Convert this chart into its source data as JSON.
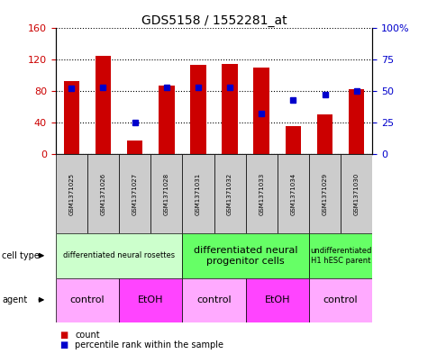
{
  "title": "GDS5158 / 1552281_at",
  "samples": [
    "GSM1371025",
    "GSM1371026",
    "GSM1371027",
    "GSM1371028",
    "GSM1371031",
    "GSM1371032",
    "GSM1371033",
    "GSM1371034",
    "GSM1371029",
    "GSM1371030"
  ],
  "counts": [
    93,
    125,
    17,
    87,
    113,
    115,
    110,
    35,
    50,
    82
  ],
  "percentiles": [
    52,
    53,
    25,
    53,
    53,
    53,
    32,
    43,
    47,
    50
  ],
  "ylim_left": [
    0,
    160
  ],
  "ylim_right": [
    0,
    100
  ],
  "yticks_left": [
    0,
    40,
    80,
    120,
    160
  ],
  "yticks_right": [
    0,
    25,
    50,
    75,
    100
  ],
  "bar_color": "#cc0000",
  "dot_color": "#0000cc",
  "cell_type_groups": [
    {
      "label": "differentiated neural rosettes",
      "cols": [
        0,
        1,
        2,
        3
      ],
      "color": "#ccffcc",
      "fontsize": 6
    },
    {
      "label": "differentiated neural\nprogenitor cells",
      "cols": [
        4,
        5,
        6,
        7
      ],
      "color": "#66ff66",
      "fontsize": 8
    },
    {
      "label": "undifferentiated\nH1 hESC parent",
      "cols": [
        8,
        9
      ],
      "color": "#66ff66",
      "fontsize": 6
    }
  ],
  "agent_groups": [
    {
      "label": "control",
      "cols": [
        0,
        1
      ],
      "color": "#ffaaff"
    },
    {
      "label": "EtOH",
      "cols": [
        2,
        3
      ],
      "color": "#ff44ff"
    },
    {
      "label": "control",
      "cols": [
        4,
        5
      ],
      "color": "#ffaaff"
    },
    {
      "label": "EtOH",
      "cols": [
        6,
        7
      ],
      "color": "#ff44ff"
    },
    {
      "label": "control",
      "cols": [
        8,
        9
      ],
      "color": "#ffaaff"
    }
  ],
  "tick_color_left": "#cc0000",
  "tick_color_right": "#0000cc",
  "bar_width": 0.5,
  "sample_box_color": "#cccccc",
  "legend_count": "count",
  "legend_pct": "percentile rank within the sample",
  "row_label_cell_type": "cell type",
  "row_label_agent": "agent"
}
